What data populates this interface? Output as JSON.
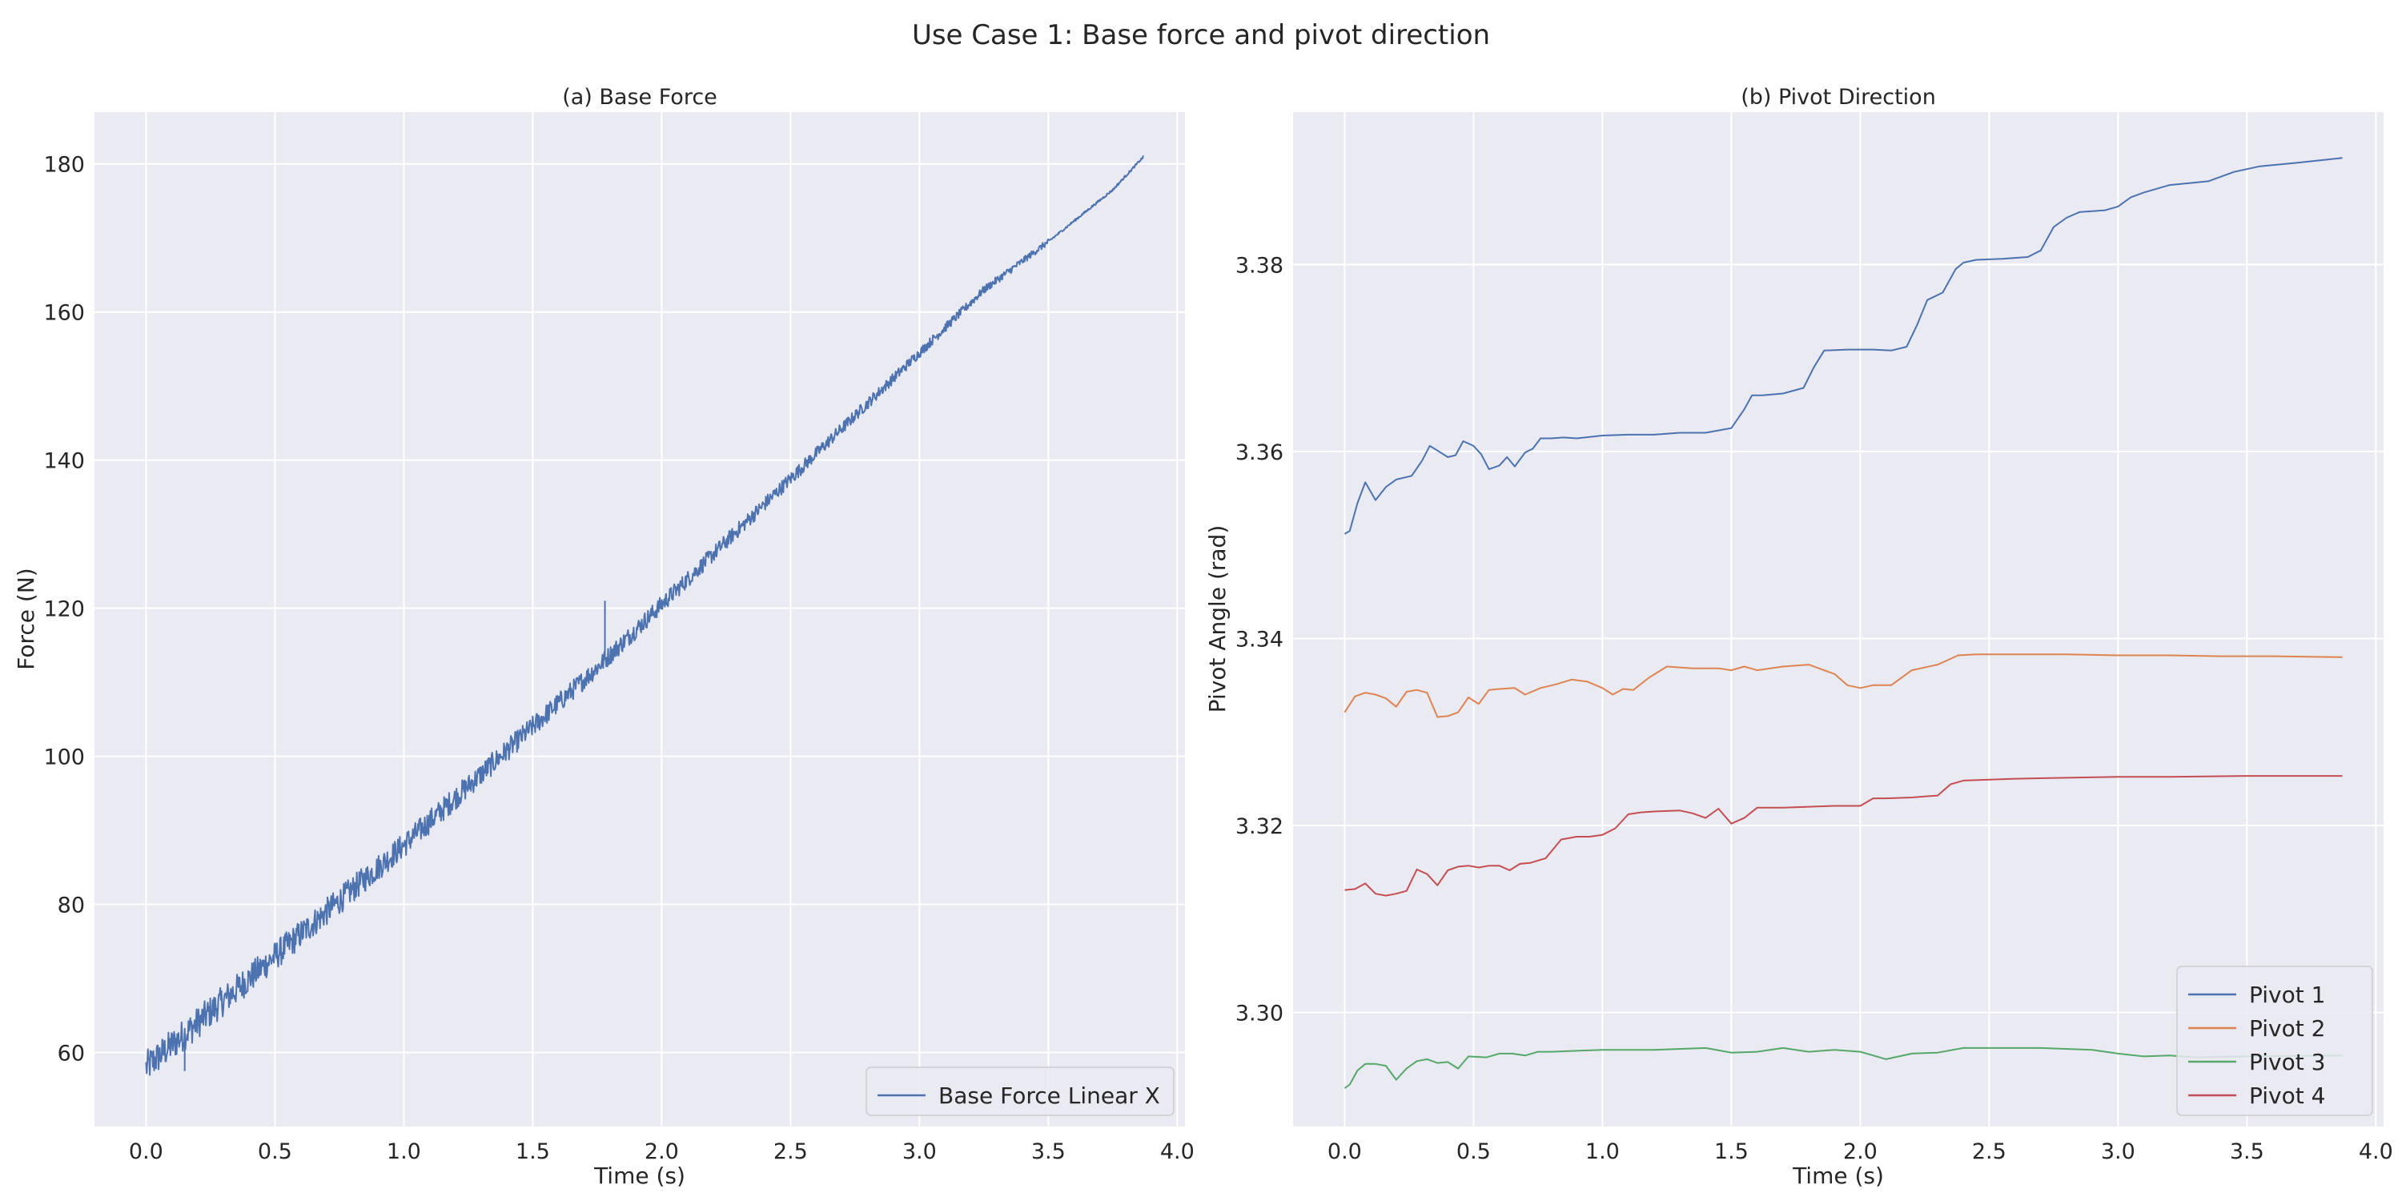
{
  "figure": {
    "title": "Use Case 1: Base force and pivot direction"
  },
  "chart_data": [
    {
      "type": "line",
      "title": "(a) Base Force",
      "xlabel": "Time (s)",
      "ylabel": "Force (N)",
      "xlim": [
        -0.2,
        4.03
      ],
      "ylim": [
        50,
        187
      ],
      "xticks": [
        "0.0",
        "0.5",
        "1.0",
        "1.5",
        "2.0",
        "2.5",
        "3.0",
        "3.5",
        "4.0"
      ],
      "yticks": [
        "60",
        "80",
        "100",
        "120",
        "140",
        "160",
        "180"
      ],
      "grid": true,
      "legend_position": "lower-right",
      "noise_note": "high-frequency noise on the trace, larger amplitude early (about ±2 N) and shrinking toward t≈3.5 s",
      "series": [
        {
          "name": "Base Force Linear X",
          "color": "#4c72b0",
          "x": [
            0.0,
            0.25,
            0.5,
            0.75,
            1.0,
            1.25,
            1.5,
            1.75,
            2.0,
            2.25,
            2.5,
            2.75,
            3.0,
            3.25,
            3.5,
            3.75,
            3.87
          ],
          "y": [
            58,
            65.5,
            73,
            80.5,
            88,
            96,
            104,
            112,
            120.5,
            129,
            137.5,
            146,
            154.5,
            163,
            169.5,
            176.5,
            181
          ],
          "spikes": [
            {
              "x": 1.78,
              "y": 121
            },
            {
              "x": 0.15,
              "y": 57.5
            }
          ]
        }
      ]
    },
    {
      "type": "line",
      "title": "(b) Pivot Direction",
      "xlabel": "Time (s)",
      "ylabel": "Pivot Angle (rad)",
      "xlim": [
        -0.2,
        4.03
      ],
      "ylim": [
        3.2878,
        3.3963
      ],
      "xticks": [
        "0.0",
        "0.5",
        "1.0",
        "1.5",
        "2.0",
        "2.5",
        "3.0",
        "3.5",
        "4.0"
      ],
      "yticks": [
        "3.30",
        "3.32",
        "3.34",
        "3.36",
        "3.38"
      ],
      "grid": true,
      "legend_position": "lower-right",
      "series": [
        {
          "name": "Pivot 1",
          "color": "#4c72b0",
          "x": [
            0.0,
            0.02,
            0.05,
            0.08,
            0.12,
            0.16,
            0.2,
            0.26,
            0.3,
            0.33,
            0.36,
            0.4,
            0.43,
            0.46,
            0.5,
            0.53,
            0.56,
            0.6,
            0.63,
            0.66,
            0.7,
            0.73,
            0.76,
            0.8,
            0.85,
            0.9,
            1.0,
            1.1,
            1.2,
            1.3,
            1.4,
            1.5,
            1.55,
            1.58,
            1.62,
            1.7,
            1.78,
            1.82,
            1.86,
            1.95,
            2.05,
            2.12,
            2.18,
            2.22,
            2.26,
            2.32,
            2.37,
            2.4,
            2.45,
            2.55,
            2.65,
            2.7,
            2.75,
            2.8,
            2.85,
            2.95,
            3.0,
            3.05,
            3.1,
            3.2,
            3.35,
            3.45,
            3.55,
            3.7,
            3.87
          ],
          "y": [
            3.3512,
            3.3515,
            3.3545,
            3.3567,
            3.3548,
            3.3562,
            3.357,
            3.3574,
            3.359,
            3.3606,
            3.3601,
            3.3594,
            3.3596,
            3.3611,
            3.3606,
            3.3597,
            3.3581,
            3.3585,
            3.3594,
            3.3584,
            3.3599,
            3.3603,
            3.3614,
            3.3614,
            3.3615,
            3.3614,
            3.3617,
            3.3618,
            3.3618,
            3.362,
            3.362,
            3.3625,
            3.3645,
            3.366,
            3.366,
            3.3662,
            3.3668,
            3.369,
            3.3708,
            3.3709,
            3.3709,
            3.3708,
            3.3712,
            3.3735,
            3.3762,
            3.377,
            3.3795,
            3.3802,
            3.3805,
            3.3806,
            3.3808,
            3.3815,
            3.384,
            3.385,
            3.3856,
            3.3858,
            3.3862,
            3.3872,
            3.3877,
            3.3885,
            3.3889,
            3.3899,
            3.3905,
            3.3909,
            3.3914
          ]
        },
        {
          "name": "Pivot 2",
          "color": "#dd8452",
          "x": [
            0.0,
            0.04,
            0.08,
            0.12,
            0.16,
            0.2,
            0.24,
            0.28,
            0.32,
            0.36,
            0.4,
            0.44,
            0.48,
            0.52,
            0.56,
            0.6,
            0.66,
            0.7,
            0.76,
            0.82,
            0.88,
            0.94,
            1.0,
            1.04,
            1.08,
            1.12,
            1.18,
            1.25,
            1.35,
            1.45,
            1.5,
            1.55,
            1.6,
            1.7,
            1.8,
            1.9,
            1.95,
            2.0,
            2.05,
            2.12,
            2.2,
            2.3,
            2.38,
            2.45,
            2.6,
            2.8,
            3.0,
            3.2,
            3.4,
            3.6,
            3.87
          ],
          "y": [
            3.3321,
            3.3338,
            3.3342,
            3.334,
            3.3336,
            3.3327,
            3.3343,
            3.3345,
            3.3342,
            3.3316,
            3.3317,
            3.3321,
            3.3337,
            3.333,
            3.3345,
            3.3346,
            3.3347,
            3.334,
            3.3347,
            3.3351,
            3.3356,
            3.3354,
            3.3347,
            3.334,
            3.3346,
            3.3345,
            3.3358,
            3.337,
            3.3368,
            3.3368,
            3.3366,
            3.337,
            3.3366,
            3.337,
            3.3372,
            3.3362,
            3.335,
            3.3347,
            3.335,
            3.335,
            3.3366,
            3.3372,
            3.3382,
            3.3383,
            3.3383,
            3.3383,
            3.3382,
            3.3382,
            3.3381,
            3.3381,
            3.338
          ]
        },
        {
          "name": "Pivot 3",
          "color": "#55a868",
          "x": [
            0.0,
            0.02,
            0.05,
            0.08,
            0.12,
            0.16,
            0.2,
            0.24,
            0.28,
            0.32,
            0.36,
            0.4,
            0.44,
            0.48,
            0.55,
            0.6,
            0.65,
            0.7,
            0.75,
            0.8,
            0.9,
            1.0,
            1.2,
            1.4,
            1.5,
            1.6,
            1.7,
            1.8,
            1.9,
            2.0,
            2.1,
            2.2,
            2.3,
            2.4,
            2.5,
            2.7,
            2.9,
            3.0,
            3.1,
            3.2,
            3.3,
            3.5,
            3.87
          ],
          "y": [
            3.2919,
            3.2923,
            3.2938,
            3.2945,
            3.2945,
            3.2943,
            3.2928,
            3.294,
            3.2948,
            3.295,
            3.2946,
            3.2947,
            3.294,
            3.2953,
            3.2952,
            3.2956,
            3.2956,
            3.2954,
            3.2958,
            3.2958,
            3.2959,
            3.296,
            3.296,
            3.2962,
            3.2957,
            3.2958,
            3.2962,
            3.2958,
            3.296,
            3.2958,
            3.295,
            3.2956,
            3.2957,
            3.2962,
            3.2962,
            3.2962,
            3.296,
            3.2956,
            3.2953,
            3.2954,
            3.2952,
            3.2953,
            3.2954
          ]
        },
        {
          "name": "Pivot 4",
          "color": "#c44e52",
          "x": [
            0.0,
            0.04,
            0.08,
            0.12,
            0.16,
            0.2,
            0.24,
            0.28,
            0.32,
            0.36,
            0.4,
            0.44,
            0.48,
            0.52,
            0.56,
            0.6,
            0.64,
            0.68,
            0.72,
            0.78,
            0.84,
            0.9,
            0.95,
            1.0,
            1.05,
            1.1,
            1.15,
            1.2,
            1.3,
            1.35,
            1.4,
            1.45,
            1.5,
            1.55,
            1.6,
            1.7,
            1.8,
            1.9,
            2.0,
            2.05,
            2.1,
            2.2,
            2.3,
            2.35,
            2.4,
            2.6,
            2.8,
            3.0,
            3.2,
            3.5,
            3.87
          ],
          "y": [
            3.3131,
            3.3132,
            3.3138,
            3.3127,
            3.3125,
            3.3127,
            3.313,
            3.3153,
            3.3148,
            3.3136,
            3.3152,
            3.3156,
            3.3157,
            3.3155,
            3.3157,
            3.3157,
            3.3152,
            3.3159,
            3.316,
            3.3165,
            3.3185,
            3.3188,
            3.3188,
            3.319,
            3.3197,
            3.3212,
            3.3214,
            3.3215,
            3.3216,
            3.3213,
            3.3208,
            3.3218,
            3.3202,
            3.3208,
            3.3219,
            3.3219,
            3.322,
            3.3221,
            3.3221,
            3.3229,
            3.3229,
            3.323,
            3.3232,
            3.3244,
            3.3248,
            3.325,
            3.3251,
            3.3252,
            3.3252,
            3.3253,
            3.3253
          ]
        }
      ]
    }
  ]
}
